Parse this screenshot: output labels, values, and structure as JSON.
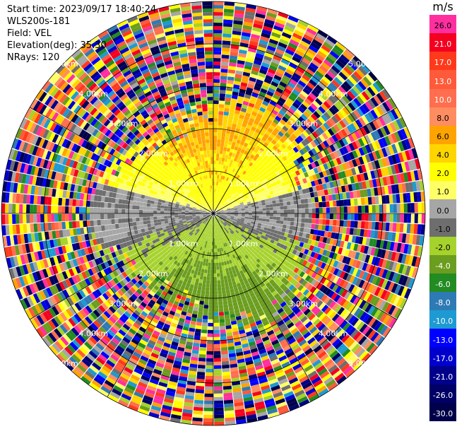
{
  "header": {
    "start_time": "Start time: 2023/09/17 18:40:24",
    "instrument": "WLS200s-181",
    "field": "Field: VEL",
    "elevation": "Elevation(deg): 35.30",
    "nrays": "NRays: 120"
  },
  "colorbar": {
    "unit": "m/s",
    "levels": [
      {
        "label": "26.0",
        "color": "#ff2fa0"
      },
      {
        "label": "21.0",
        "color": "#f40020"
      },
      {
        "label": "17.0",
        "color": "#ff3a1a"
      },
      {
        "label": "13.0",
        "color": "#ff5a3a"
      },
      {
        "label": "10.0",
        "color": "#ff6e4e"
      },
      {
        "label": "8.0",
        "color": "#ff8d60"
      },
      {
        "label": "6.0",
        "color": "#ffa300"
      },
      {
        "label": "4.0",
        "color": "#ffd500"
      },
      {
        "label": "2.0",
        "color": "#ffff00"
      },
      {
        "label": "1.0",
        "color": "#ffff66"
      },
      {
        "label": "0.0",
        "color": "#a6a6a6"
      },
      {
        "label": "-1.0",
        "color": "#6e6e6e"
      },
      {
        "label": "-2.0",
        "color": "#a6d22c"
      },
      {
        "label": "-4.0",
        "color": "#6b9d1e"
      },
      {
        "label": "-6.0",
        "color": "#228b22"
      },
      {
        "label": "-8.0",
        "color": "#2e7ab5"
      },
      {
        "label": "-10.0",
        "color": "#1e9ad2"
      },
      {
        "label": "-13.0",
        "color": "#0000ff"
      },
      {
        "label": "-17.0",
        "color": "#0000cd"
      },
      {
        "label": "-21.0",
        "color": "#00008b"
      },
      {
        "label": "-26.0",
        "color": "#000066"
      },
      {
        "label": "-30.0",
        "color": "#00004a"
      }
    ]
  },
  "ring_labels": [
    "1.00km",
    "2.00km",
    "3.00km",
    "4.00km",
    "5.00km"
  ]
}
